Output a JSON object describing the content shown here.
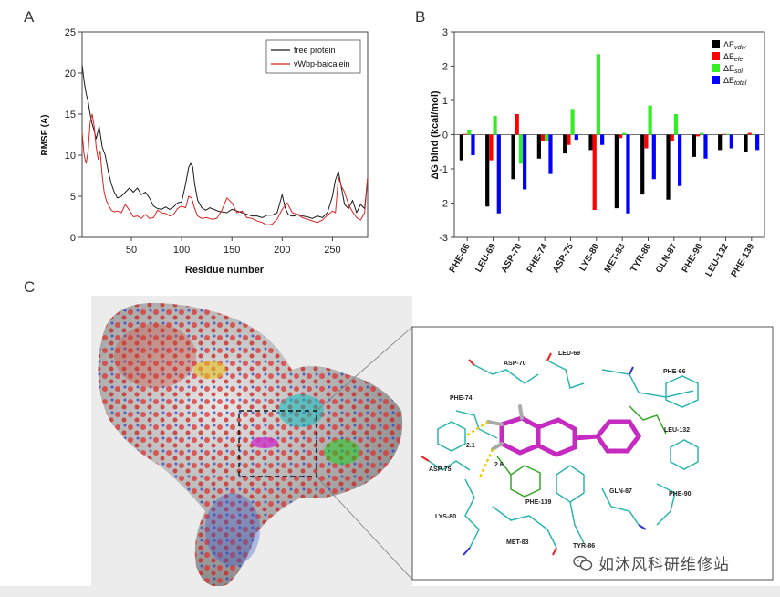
{
  "panels": {
    "a": "A",
    "b": "B",
    "c": "C"
  },
  "chart_data": [
    {
      "type": "line",
      "title": "",
      "xlabel": "Residue number",
      "ylabel": "RMSF (A)",
      "xlim": [
        1,
        285
      ],
      "ylim": [
        0,
        25
      ],
      "xticks": [
        50,
        100,
        150,
        200,
        250
      ],
      "yticks": [
        0,
        5,
        10,
        15,
        20,
        25
      ],
      "legend_position": "top-right",
      "series": [
        {
          "name": "free protein",
          "color": "#1a1a1a",
          "x": [
            1,
            3,
            5,
            7,
            9,
            11,
            13,
            15,
            18,
            21,
            24,
            27,
            30,
            33,
            36,
            40,
            44,
            48,
            52,
            56,
            60,
            64,
            68,
            72,
            76,
            80,
            84,
            88,
            92,
            96,
            100,
            104,
            107,
            109,
            111,
            113,
            116,
            120,
            124,
            128,
            132,
            136,
            140,
            145,
            150,
            155,
            160,
            165,
            170,
            175,
            180,
            185,
            190,
            195,
            200,
            203,
            206,
            209,
            212,
            216,
            220,
            225,
            230,
            235,
            240,
            245,
            250,
            253,
            256,
            259,
            262,
            266,
            270,
            274,
            278,
            282,
            285
          ],
          "values": [
            21,
            19,
            17.5,
            16.5,
            15,
            13.8,
            13,
            12,
            13.5,
            11,
            10,
            8,
            6.5,
            5.5,
            4.8,
            5,
            5.5,
            6,
            5.5,
            6,
            5.2,
            5.5,
            4.8,
            3.8,
            3.5,
            3.4,
            3.7,
            3.4,
            3.7,
            4.2,
            4.3,
            6.5,
            8.5,
            9,
            8.6,
            6.5,
            4.5,
            3.6,
            3.3,
            3.6,
            3.4,
            3.2,
            3.1,
            3,
            3.4,
            3.2,
            3,
            2.8,
            2.6,
            2.6,
            2.4,
            2.7,
            2.7,
            3,
            5.2,
            3.6,
            2.8,
            2.6,
            2.6,
            2.8,
            2.6,
            2.5,
            2.3,
            2.6,
            2.4,
            3,
            5,
            7,
            8,
            6,
            4,
            3.5,
            4.5,
            3,
            4,
            3.5,
            7.3
          ]
        },
        {
          "name": "vWbp-baicalein",
          "color": "#dd2222",
          "x": [
            1,
            3,
            5,
            7,
            9,
            11,
            13,
            15,
            17,
            19,
            21,
            23,
            25,
            27,
            30,
            33,
            36,
            40,
            44,
            48,
            52,
            56,
            60,
            64,
            68,
            72,
            76,
            80,
            84,
            88,
            92,
            96,
            100,
            104,
            107,
            110,
            113,
            116,
            120,
            125,
            130,
            135,
            140,
            145,
            150,
            155,
            160,
            165,
            170,
            175,
            180,
            185,
            190,
            195,
            200,
            205,
            210,
            215,
            220,
            225,
            230,
            235,
            240,
            245,
            250,
            253,
            256,
            259,
            262,
            266,
            270,
            274,
            278,
            282,
            285
          ],
          "values": [
            12.8,
            10,
            9,
            10.5,
            14,
            15,
            13.5,
            11,
            9.5,
            10.5,
            7.5,
            5.5,
            4.5,
            4,
            3.3,
            3.1,
            3.2,
            3,
            4,
            3.3,
            2.5,
            2.6,
            2.3,
            2.8,
            2.3,
            2.4,
            3.3,
            3,
            2.9,
            2.6,
            2.8,
            3.5,
            3.8,
            3.6,
            5,
            4.8,
            3.5,
            2.6,
            2.3,
            2.4,
            2.2,
            2.3,
            3.3,
            4.8,
            4.2,
            3,
            3.2,
            2.4,
            2.3,
            2,
            1.8,
            1.5,
            1.6,
            2.2,
            3.4,
            4.2,
            3,
            2.8,
            2.4,
            2.2,
            2,
            1.8,
            2.1,
            2.7,
            3.2,
            3,
            7.3,
            6.2,
            5.5,
            4,
            3.1,
            2.4,
            2.1,
            3,
            7.3
          ]
        }
      ]
    },
    {
      "type": "bar",
      "title": "",
      "xlabel": "",
      "ylabel": "ΔG bind (kcal/mol)",
      "ylim": [
        -3,
        3
      ],
      "yticks": [
        -3,
        -2,
        -1,
        0,
        1,
        2,
        3
      ],
      "legend_position": "top-right",
      "categories": [
        "PHE-66",
        "LEU-69",
        "ASP-70",
        "PHE-74",
        "ASP-75",
        "LYS-80",
        "MET-83",
        "TYR-86",
        "GLN-87",
        "PHE-90",
        "LEU-132",
        "PHE-139"
      ],
      "series": [
        {
          "name": "ΔE vdw",
          "label_main": "ΔE",
          "label_sub": "vdw",
          "color": "#000000",
          "values": [
            -0.75,
            -2.1,
            -1.3,
            -0.7,
            -0.55,
            -0.45,
            -2.15,
            -1.75,
            -1.9,
            -0.65,
            -0.45,
            -0.5
          ]
        },
        {
          "name": "ΔE ele",
          "label_main": "ΔE",
          "label_sub": "ele",
          "color": "#ff0000",
          "values": [
            0.02,
            -0.75,
            0.6,
            -0.2,
            -0.3,
            -2.2,
            -0.1,
            -0.4,
            -0.2,
            -0.05,
            0.02,
            0.05
          ]
        },
        {
          "name": "ΔE sol",
          "label_main": "ΔE",
          "label_sub": "sol",
          "color": "#33ee22",
          "values": [
            0.15,
            0.55,
            -0.85,
            -0.2,
            0.75,
            2.35,
            0.05,
            0.85,
            0.6,
            0.05,
            0.02,
            0.02
          ]
        },
        {
          "name": "ΔE total",
          "label_main": "ΔE",
          "label_sub": "total",
          "color": "#0000ff",
          "values": [
            -0.6,
            -2.3,
            -1.6,
            -1.15,
            -0.15,
            -0.3,
            -2.3,
            -1.3,
            -1.5,
            -0.7,
            -0.4,
            -0.45
          ]
        }
      ]
    }
  ],
  "structure": {
    "labels": {
      "asp70": "ASP-70",
      "leu69": "LEU-69",
      "phe66": "PHE-66",
      "phe74": "PHE-74",
      "leu132": "LEU-132",
      "asp75": "ASP-75",
      "lys80": "LYS-80",
      "phe139": "PHE-139",
      "gln87": "GLN-87",
      "phe90": "PHE-90",
      "met83": "MET-83",
      "tyr86": "TYR-86",
      "hb1": "2.1",
      "hb2": "2.6"
    }
  },
  "watermark": {
    "text": "如沐风科研维修站",
    "icon": "wechat-icon"
  }
}
